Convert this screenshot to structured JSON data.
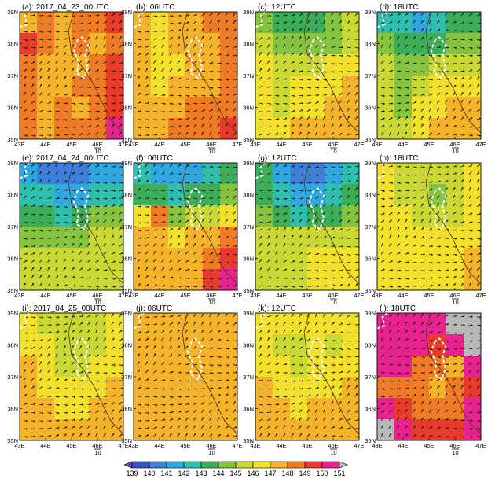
{
  "panels": [
    {
      "label": "(a): 2017_04_23_00UTC",
      "field": [
        [
          147,
          148,
          147,
          148,
          148,
          149
        ],
        [
          149,
          148,
          147,
          148,
          147,
          148
        ],
        [
          148,
          147,
          147,
          147,
          148,
          149
        ],
        [
          148,
          147,
          147,
          148,
          148,
          149
        ],
        [
          148,
          147,
          148,
          147,
          148,
          149
        ],
        [
          148,
          147,
          148,
          148,
          148,
          150
        ]
      ]
    },
    {
      "label": "(b): 06UTC",
      "field": [
        [
          147,
          146,
          147,
          147,
          148,
          148
        ],
        [
          147,
          146,
          147,
          147,
          147,
          148
        ],
        [
          147,
          146,
          146,
          147,
          147,
          148
        ],
        [
          147,
          146,
          147,
          147,
          147,
          148
        ],
        [
          147,
          147,
          147,
          148,
          148,
          148
        ],
        [
          147,
          147,
          148,
          148,
          148,
          149
        ]
      ]
    },
    {
      "label": "(c): 12UTC",
      "field": [
        [
          144,
          143,
          143,
          143,
          144,
          145
        ],
        [
          145,
          144,
          144,
          144,
          144,
          145
        ],
        [
          146,
          145,
          145,
          145,
          146,
          146
        ],
        [
          146,
          145,
          146,
          146,
          146,
          147
        ],
        [
          146,
          145,
          146,
          146,
          147,
          147
        ],
        [
          146,
          146,
          147,
          147,
          147,
          147
        ]
      ]
    },
    {
      "label": "(d): 18UTC",
      "field": [
        [
          142,
          142,
          141,
          142,
          143,
          143
        ],
        [
          144,
          143,
          143,
          143,
          144,
          144
        ],
        [
          145,
          144,
          144,
          145,
          145,
          145
        ],
        [
          145,
          144,
          145,
          146,
          146,
          146
        ],
        [
          145,
          144,
          146,
          146,
          147,
          147
        ],
        [
          145,
          145,
          146,
          147,
          147,
          147
        ]
      ]
    },
    {
      "label": "(e): 2017_04_24_00UTC",
      "field": [
        [
          141,
          140,
          140,
          140,
          141,
          141
        ],
        [
          142,
          142,
          141,
          141,
          142,
          142
        ],
        [
          143,
          143,
          142,
          143,
          144,
          144
        ],
        [
          144,
          144,
          144,
          144,
          145,
          145
        ],
        [
          145,
          145,
          145,
          145,
          145,
          145
        ],
        [
          145,
          145,
          145,
          145,
          145,
          145
        ]
      ]
    },
    {
      "label": "(f): 06UTC",
      "field": [
        [
          142,
          141,
          141,
          141,
          142,
          143
        ],
        [
          143,
          143,
          142,
          143,
          143,
          144
        ],
        [
          146,
          148,
          144,
          145,
          145,
          146
        ],
        [
          147,
          147,
          146,
          147,
          147,
          148
        ],
        [
          147,
          147,
          147,
          147,
          148,
          149
        ],
        [
          147,
          147,
          147,
          147,
          149,
          150
        ]
      ]
    },
    {
      "label": "(g): 12UTC",
      "field": [
        [
          143,
          141,
          140,
          140,
          141,
          142
        ],
        [
          143,
          142,
          141,
          141,
          142,
          143
        ],
        [
          144,
          143,
          142,
          143,
          143,
          144
        ],
        [
          145,
          145,
          145,
          145,
          145,
          145
        ],
        [
          145,
          145,
          145,
          146,
          146,
          146
        ],
        [
          145,
          145,
          145,
          146,
          146,
          146
        ]
      ]
    },
    {
      "label": "(h): 18UTC",
      "field": [
        [
          146,
          145,
          145,
          145,
          145,
          146
        ],
        [
          146,
          145,
          145,
          144,
          145,
          146
        ],
        [
          146,
          146,
          145,
          145,
          145,
          146
        ],
        [
          146,
          146,
          146,
          146,
          146,
          146
        ],
        [
          146,
          146,
          146,
          146,
          146,
          147
        ],
        [
          146,
          146,
          146,
          146,
          146,
          147
        ]
      ]
    },
    {
      "label": "(i): 2017_04_25_00UTC",
      "field": [
        [
          146,
          145,
          145,
          145,
          145,
          146
        ],
        [
          146,
          146,
          145,
          145,
          145,
          146
        ],
        [
          147,
          146,
          145,
          145,
          146,
          146
        ],
        [
          147,
          146,
          146,
          146,
          146,
          147
        ],
        [
          147,
          147,
          146,
          146,
          147,
          147
        ],
        [
          147,
          147,
          147,
          147,
          147,
          147
        ]
      ]
    },
    {
      "label": "(j): 06UTC",
      "field": [
        [
          147,
          147,
          147,
          147,
          147,
          147
        ],
        [
          147,
          147,
          147,
          147,
          147,
          147
        ],
        [
          147,
          147,
          147,
          147,
          147,
          147
        ],
        [
          147,
          147,
          147,
          147,
          147,
          147
        ],
        [
          147,
          147,
          147,
          147,
          147,
          147
        ],
        [
          147,
          147,
          147,
          147,
          147,
          147
        ]
      ]
    },
    {
      "label": "(k): 12UTC",
      "field": [
        [
          146,
          146,
          146,
          146,
          146,
          146
        ],
        [
          146,
          145,
          145,
          146,
          145,
          146
        ],
        [
          146,
          146,
          145,
          146,
          146,
          146
        ],
        [
          147,
          146,
          146,
          146,
          146,
          147
        ],
        [
          147,
          147,
          146,
          147,
          147,
          147
        ],
        [
          147,
          147,
          147,
          147,
          147,
          147
        ]
      ]
    },
    {
      "label": "(l): 18UTC",
      "field": [
        [
          150,
          150,
          150,
          150,
          151,
          152
        ],
        [
          150,
          150,
          150,
          149,
          150,
          151
        ],
        [
          150,
          150,
          148,
          148,
          147,
          150
        ],
        [
          148,
          148,
          148,
          147,
          148,
          149
        ],
        [
          150,
          149,
          148,
          148,
          148,
          150
        ],
        [
          151,
          150,
          149,
          149,
          149,
          150
        ]
      ]
    }
  ],
  "axes": {
    "lat_ticks": [
      "39N",
      "38N",
      "37N",
      "36N",
      "35N"
    ],
    "lon_ticks": [
      "43E",
      "44E",
      "45E",
      "46E",
      "47E"
    ],
    "vector_ref": "10"
  },
  "colorbar": {
    "levels": [
      "139",
      "140",
      "141",
      "142",
      "143",
      "144",
      "145",
      "146",
      "147",
      "148",
      "149",
      "150",
      "151"
    ],
    "colors": [
      "#7b3fb5",
      "#3b4fc9",
      "#3d7fdb",
      "#2fa8e0",
      "#2ebfae",
      "#3cae5a",
      "#86c440",
      "#c9d833",
      "#f2e02b",
      "#f5b32a",
      "#f07b25",
      "#e83b2b",
      "#e8228f",
      "#b8b8b8"
    ]
  }
}
